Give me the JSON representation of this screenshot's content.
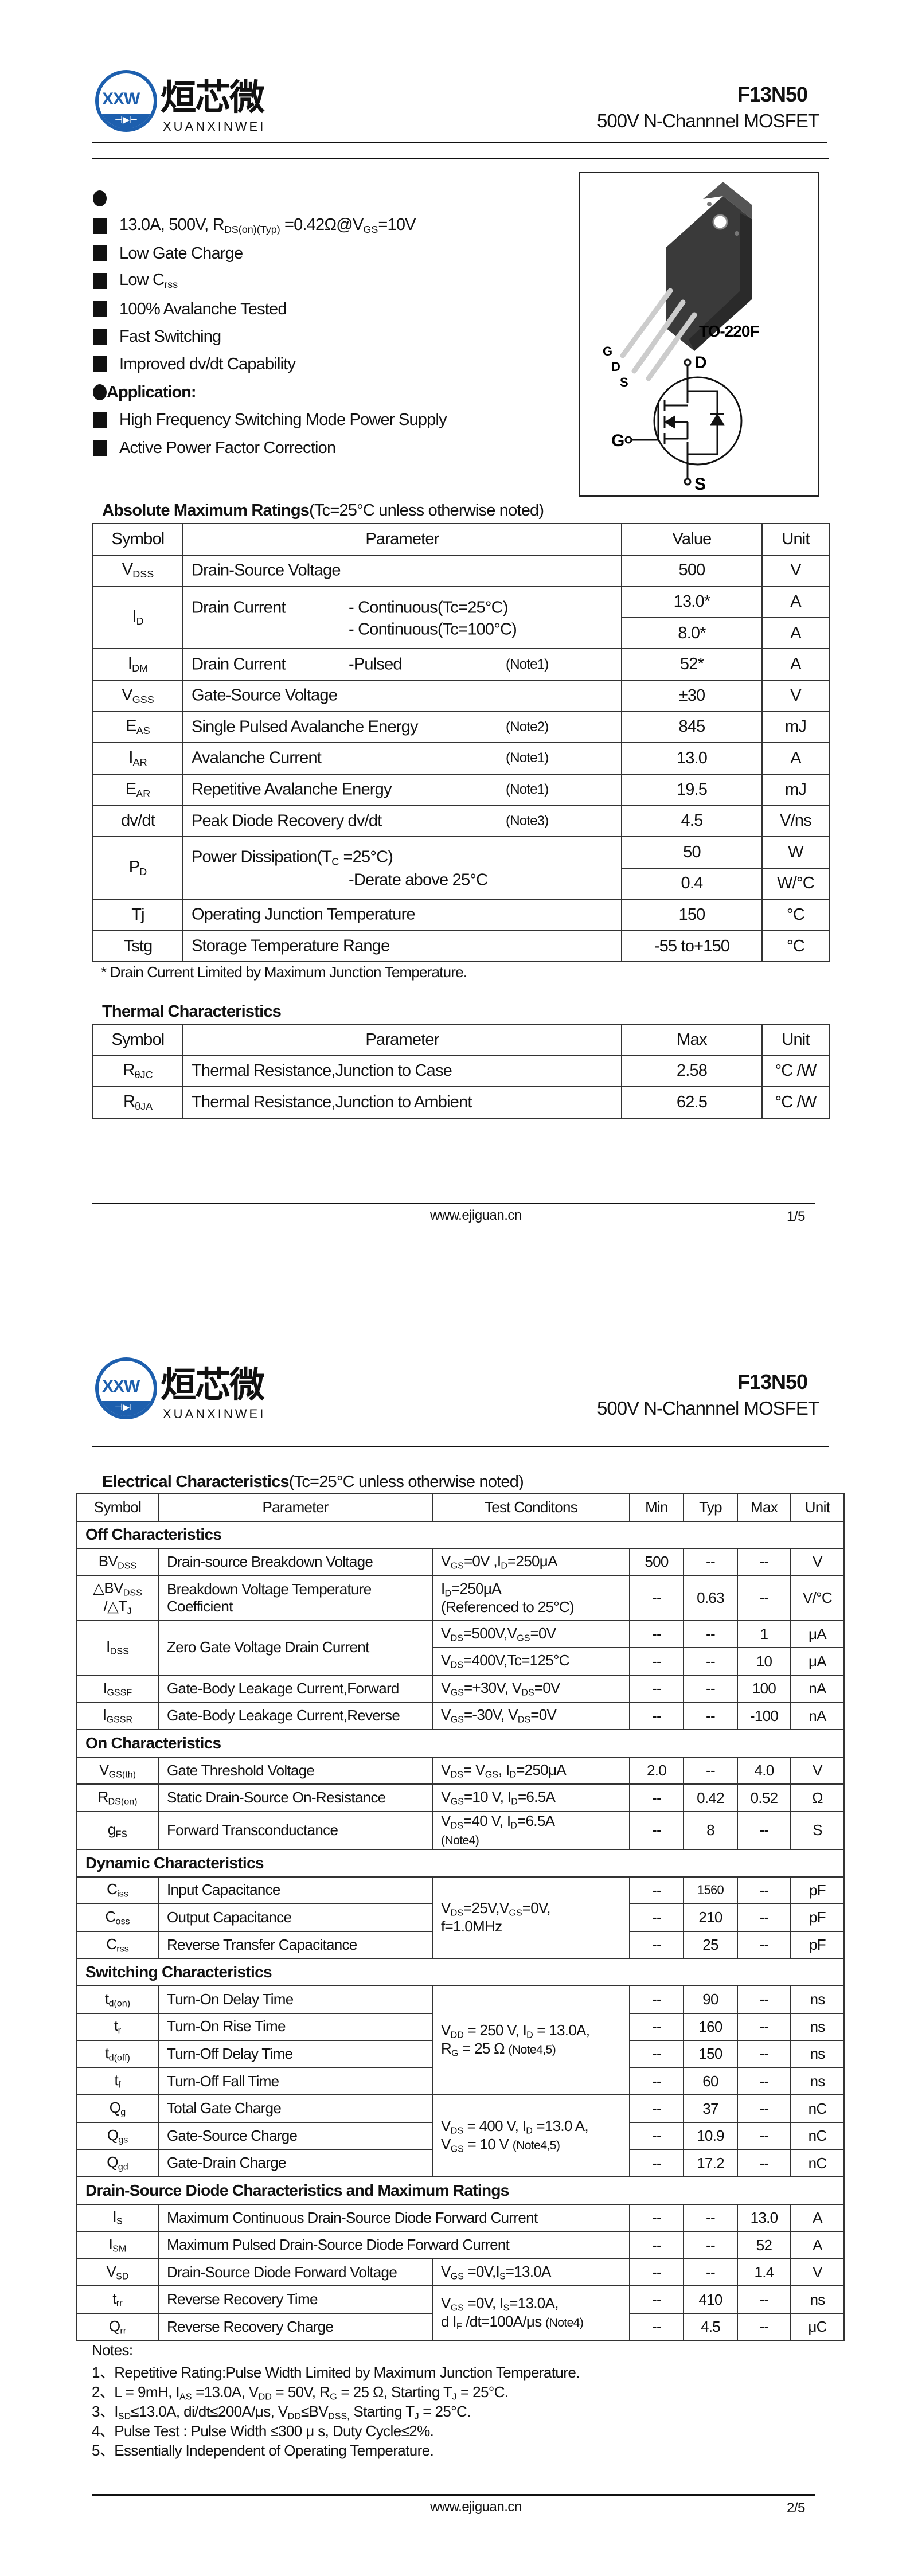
{
  "header": {
    "logo_mark": "XXW",
    "brand_cn": "烜芯微",
    "brand_en": "XUANXINWEI",
    "part_number": "F13N50",
    "subtitle": "500V N-Channnel MOSFET"
  },
  "features": {
    "items": [
      "13.0A, 500V, R_{DS(on)(Typ)} =0.42Ω@V_{GS}=10V",
      "Low Gate Charge",
      "Low C_{rss}",
      "100% Avalanche Tested",
      "Fast Switching",
      "Improved dv/dt Capability"
    ],
    "application_heading": "Application:",
    "applications": [
      "High Frequency Switching Mode Power Supply",
      "Active Power Factor Correction"
    ]
  },
  "package": {
    "name": "TO-220F",
    "pin_g": "G",
    "pin_d": "D",
    "pin_s": "S"
  },
  "abs_max": {
    "title_bold": "Absolute Maximum Ratings",
    "title_rest": "(Tc=25°C unless otherwise noted)",
    "headers": [
      "Symbol",
      "Parameter",
      "Value",
      "Unit"
    ],
    "rows": [
      {
        "sym": "V_{DSS}",
        "param": "Drain-Source Voltage",
        "values": [
          "500"
        ],
        "units": [
          "V"
        ]
      },
      {
        "sym": "I_{D}",
        "param": "Drain Current",
        "extra": [
          "- Continuous(Tc=25°C)",
          "- Continuous(Tc=100°C)"
        ],
        "values": [
          "13.0*",
          "8.0*"
        ],
        "units": [
          "A",
          "A"
        ]
      },
      {
        "sym": "I_{DM}",
        "param": "Drain Current",
        "extra": [
          "-Pulsed"
        ],
        "note": "(Note1)",
        "values": [
          "52*"
        ],
        "units": [
          "A"
        ]
      },
      {
        "sym": "V_{GSS}",
        "param": "Gate-Source Voltage",
        "values": [
          "±30"
        ],
        "units": [
          "V"
        ]
      },
      {
        "sym": "E_{AS}",
        "param": "Single Pulsed Avalanche Energy",
        "note": "(Note2)",
        "values": [
          "845"
        ],
        "units": [
          "mJ"
        ]
      },
      {
        "sym": "I_{AR}",
        "param": "Avalanche Current",
        "note": "(Note1)",
        "values": [
          "13.0"
        ],
        "units": [
          "A"
        ]
      },
      {
        "sym": "E_{AR}",
        "param": "Repetitive Avalanche Energy",
        "note": "(Note1)",
        "values": [
          "19.5"
        ],
        "units": [
          "mJ"
        ]
      },
      {
        "sym": "dv/dt",
        "param": "Peak Diode Recovery dv/dt",
        "note": "(Note3)",
        "values": [
          "4.5"
        ],
        "units": [
          "V/ns"
        ]
      },
      {
        "sym": "P_{D}",
        "param": "Power Dissipation(T_{C} =25°C)",
        "extra2": "-Derate above 25°C",
        "values": [
          "50",
          "0.4"
        ],
        "units": [
          "W",
          "W/°C"
        ]
      },
      {
        "sym": "Tj",
        "param": "Operating Junction Temperature",
        "values": [
          "150"
        ],
        "units": [
          "°C"
        ]
      },
      {
        "sym": "Tstg",
        "param": "Storage Temperature Range",
        "values": [
          "-55 to+150"
        ],
        "units": [
          "°C"
        ]
      }
    ],
    "footnote": "* Drain Current Limited by Maximum Junction Temperature."
  },
  "thermal": {
    "title": "Thermal Characteristics",
    "headers": [
      "Symbol",
      "Parameter",
      "Max",
      "Unit"
    ],
    "rows": [
      {
        "sym": "R_{θJC}",
        "param": "Thermal Resistance,Junction to Case",
        "max": "2.58",
        "unit": "°C /W"
      },
      {
        "sym": "R_{θJA}",
        "param": "Thermal Resistance,Junction to Ambient",
        "max": "62.5",
        "unit": "°C /W"
      }
    ]
  },
  "footer": {
    "url": "www.ejiguan.cn",
    "page1": "1/5",
    "page2": "2/5"
  },
  "electrical": {
    "title_bold": "Electrical Characteristics",
    "title_rest": "(Tc=25°C unless otherwise noted)",
    "headers": [
      "Symbol",
      "Parameter",
      "Test Conditons",
      "Min",
      "Typ",
      "Max",
      "Unit"
    ],
    "sections": [
      {
        "title": "Off Characteristics",
        "rows": [
          {
            "sym": "BV_{DSS}",
            "param": "Drain-source Breakdown Voltage",
            "lines": [
              {
                "cond": "V_{GS}=0V ,I_{D}=250μA",
                "min": "500",
                "typ": "--",
                "max": "--",
                "unit": "V"
              }
            ]
          },
          {
            "sym": "△BV_{DSS}\n/△T_{J}",
            "param": "Breakdown Voltage Temperature\nCoefficient",
            "tall": true,
            "lines": [
              {
                "cond": "I_{D}=250μA\n(Referenced to 25°C)",
                "min": "--",
                "typ": "0.63",
                "max": "--",
                "unit": "V/°C"
              }
            ]
          },
          {
            "sym": "I_{DSS}",
            "param": "Zero Gate Voltage Drain Current",
            "lines": [
              {
                "cond": "V_{DS}=500V,V_{GS}=0V",
                "min": "--",
                "typ": "--",
                "max": "1",
                "unit": "μA"
              },
              {
                "cond": "V_{DS}=400V,Tc=125°C",
                "min": "--",
                "typ": "--",
                "max": "10",
                "unit": "μA"
              }
            ]
          },
          {
            "sym": "I_{GSSF}",
            "param": "Gate-Body Leakage Current,Forward",
            "lines": [
              {
                "cond": "V_{GS}=+30V, V_{DS}=0V",
                "min": "--",
                "typ": "--",
                "max": "100",
                "unit": "nA"
              }
            ]
          },
          {
            "sym": "I_{GSSR}",
            "param": "Gate-Body Leakage Current,Reverse",
            "lines": [
              {
                "cond": "V_{GS}=-30V, V_{DS}=0V",
                "min": "--",
                "typ": "--",
                "max": "-100",
                "unit": "nA"
              }
            ]
          }
        ]
      },
      {
        "title": "On Characteristics",
        "rows": [
          {
            "sym": "V_{GS(th)}",
            "param": "Gate Threshold Voltage",
            "lines": [
              {
                "cond": "V_{DS}= V_{GS}, I_{D}=250μA",
                "min": "2.0",
                "typ": "--",
                "max": "4.0",
                "unit": "V"
              }
            ]
          },
          {
            "sym": "R_{DS(on)}",
            "param": "Static Drain-Source On-Resistance",
            "lines": [
              {
                "cond": "V_{GS}=10 V, I_{D}=6.5A",
                "min": "--",
                "typ": "0.42",
                "max": "0.52",
                "unit": "Ω"
              }
            ]
          },
          {
            "sym": "g_{FS}",
            "param": "Forward Transconductance",
            "tall": true,
            "lines": [
              {
                "cond": "V_{DS}=40 V, I_{D}=6.5A\n                    (Note4)",
                "min": "--",
                "typ": "8",
                "max": "--",
                "unit": "S"
              }
            ]
          }
        ]
      },
      {
        "title": "Dynamic Characteristics",
        "rows": [
          {
            "sym": "C_{iss}",
            "param": "Input Capacitance",
            "lines": [
              {
                "cond": "V_{DS}=25V,V_{GS}=0V,\nf=1.0MHz",
                "cond_span": 3,
                "min": "--",
                "typ": "1560",
                "max": "--",
                "unit": "pF"
              }
            ]
          },
          {
            "sym": "C_{oss}",
            "param": "Output Capacitance",
            "lines": [
              {
                "min": "--",
                "typ": "210",
                "max": "--",
                "unit": "pF"
              }
            ]
          },
          {
            "sym": "C_{rss}",
            "param": "Reverse Transfer Capacitance",
            "lines": [
              {
                "min": "--",
                "typ": "25",
                "max": "--",
                "unit": "pF"
              }
            ]
          }
        ]
      },
      {
        "title": "Switching Characteristics",
        "rows": [
          {
            "sym": "t_{d(on)}",
            "param": "Turn-On Delay Time",
            "lines": [
              {
                "cond": "V_{DD} = 250 V, I_{D} = 13.0A,\nR_{G} = 25 Ω     (Note4,5)",
                "cond_span": 4,
                "min": "--",
                "typ": "90",
                "max": "--",
                "unit": "ns"
              }
            ]
          },
          {
            "sym": "t_{r}",
            "param": "Turn-On Rise Time",
            "lines": [
              {
                "min": "--",
                "typ": "160",
                "max": "--",
                "unit": "ns"
              }
            ]
          },
          {
            "sym": "t_{d(off)}",
            "param": "Turn-Off Delay Time",
            "lines": [
              {
                "min": "--",
                "typ": "150",
                "max": "--",
                "unit": "ns"
              }
            ]
          },
          {
            "sym": "t_{f}",
            "param": "Turn-Off Fall Time",
            "lines": [
              {
                "min": "--",
                "typ": "60",
                "max": "--",
                "unit": "ns"
              }
            ]
          },
          {
            "sym": "Q_{g}",
            "param": "Total Gate Charge",
            "lines": [
              {
                "cond": "V_{DS} = 400 V, I_{D} =13.0 A,\nV_{GS} = 10 V    (Note4,5)",
                "cond_span": 3,
                "min": "--",
                "typ": "37",
                "max": "--",
                "unit": "nC"
              }
            ]
          },
          {
            "sym": "Q_{gs}",
            "param": "Gate-Source Charge",
            "lines": [
              {
                "min": "--",
                "typ": "10.9",
                "max": "--",
                "unit": "nC"
              }
            ]
          },
          {
            "sym": "Q_{gd}",
            "param": "Gate-Drain Charge",
            "lines": [
              {
                "min": "--",
                "typ": "17.2",
                "max": "--",
                "unit": "nC"
              }
            ]
          }
        ]
      },
      {
        "title": "Drain-Source Diode Characteristics and Maximum Ratings",
        "rows": [
          {
            "sym": "I_{S}",
            "param": "Maximum Continuous Drain-Source Diode Forward Current",
            "wide": true,
            "lines": [
              {
                "min": "--",
                "typ": "--",
                "max": "13.0",
                "unit": "A"
              }
            ]
          },
          {
            "sym": "I_{SM}",
            "param": "Maximum Pulsed Drain-Source Diode Forward Current",
            "wide": true,
            "lines": [
              {
                "min": "--",
                "typ": "--",
                "max": "52",
                "unit": "A"
              }
            ]
          },
          {
            "sym": "V_{SD}",
            "param": "Drain-Source Diode Forward Voltage",
            "lines": [
              {
                "cond": "V_{GS} =0V,I_{S}=13.0A",
                "min": "--",
                "typ": "--",
                "max": "1.4",
                "unit": "V"
              }
            ]
          },
          {
            "sym": "t_{rr}",
            "param": "Reverse Recovery Time",
            "lines": [
              {
                "cond": "V_{GS} =0V, I_{S}=13.0A,\nd I_{F} /dt=100A/μs (Note4)",
                "cond_span": 2,
                "min": "--",
                "typ": "410",
                "max": "--",
                "unit": "ns"
              }
            ]
          },
          {
            "sym": "Q_{rr}",
            "param": "Reverse Recovery Charge",
            "lines": [
              {
                "min": "--",
                "typ": "4.5",
                "max": "--",
                "unit": "μC"
              }
            ]
          }
        ]
      }
    ],
    "notes_heading": "Notes:",
    "notes": [
      "1、Repetitive Rating:Pulse Width Limited by Maximum Junction Temperature.",
      "2、L = 9mH, I_{AS} =13.0A, V_{DD} = 50V, R_{G} = 25 Ω, Starting T_{J} = 25°C.",
      "3、I_{SD}≤13.0A, di/dt≤200A/μs, V_{DD}≤BV_{DSS,} Starting T_{J} = 25°C.",
      "4、Pulse Test : Pulse Width ≤300 μ s, Duty Cycle≤2%.",
      "5、Essentially Independent of Operating Temperature."
    ]
  },
  "colors": {
    "brand_blue": "#1d5fae",
    "text": "#111111"
  }
}
